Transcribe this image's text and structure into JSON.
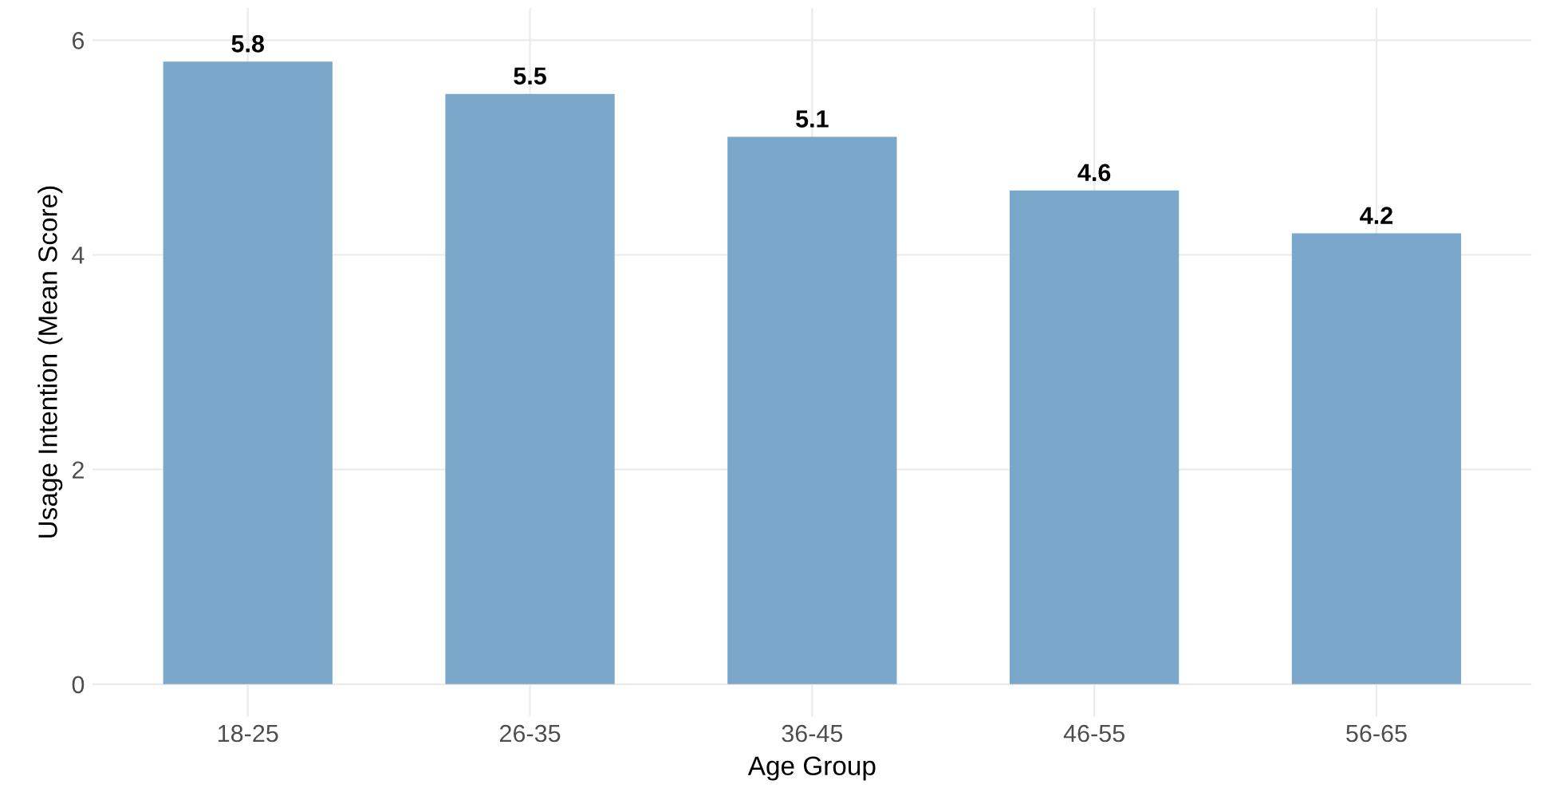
{
  "chart_data": {
    "type": "bar",
    "xlabel": "Age Group",
    "ylabel": "Usage Intention (Mean Score)",
    "categories": [
      "18-25",
      "26-35",
      "36-45",
      "46-55",
      "56-65"
    ],
    "values": [
      5.8,
      5.5,
      5.1,
      4.6,
      4.2
    ],
    "color": "#7ba7cb",
    "ylim": [
      -0.3,
      6.3
    ],
    "yticks": [
      0,
      2,
      4,
      6
    ],
    "grid": true,
    "data_labels": true
  }
}
